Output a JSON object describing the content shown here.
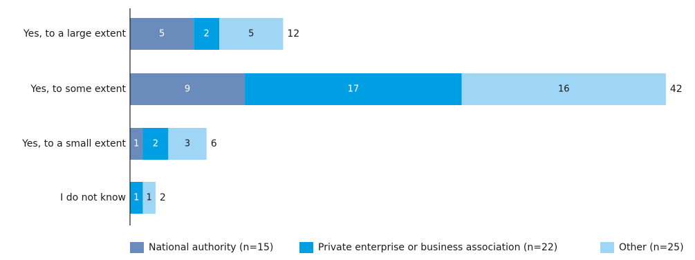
{
  "chart_data": {
    "type": "bar",
    "orientation": "horizontal",
    "stacked": true,
    "title": "",
    "xlabel": "",
    "ylabel": "",
    "categories": [
      "Yes, to a large extent",
      "Yes, to some extent",
      "Yes, to a small extent",
      "I do not know"
    ],
    "series": [
      {
        "name": "National authority (n=15)",
        "values": [
          5,
          9,
          1,
          0
        ],
        "color": "#6a8cbd"
      },
      {
        "name": "Private enterprise or business association  (n=22)",
        "values": [
          2,
          17,
          2,
          1
        ],
        "color": "#009fe3"
      },
      {
        "name": "Other (n=25)",
        "values": [
          5,
          16,
          3,
          1
        ],
        "color": "#9fd6f5"
      }
    ],
    "totals": [
      12,
      42,
      6,
      2
    ],
    "xlim": [
      0,
      42
    ],
    "grid": false,
    "legend_position": "bottom"
  }
}
